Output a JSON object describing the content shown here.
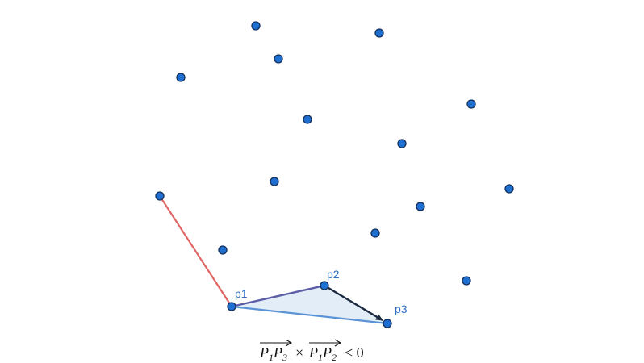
{
  "colors": {
    "point_fill": "#1f6fd1",
    "point_stroke": "#14305a",
    "hull_edge": "#e06666",
    "edge_p1_p2": "#5b5ea6",
    "edge_p2_p3": "#1b2a41",
    "edge_p1_p3": "#5b93d6",
    "triangle_fill": "#e3edf8",
    "label": "#2e6fc4"
  },
  "labels": {
    "p1": "p1",
    "p2": "p2",
    "p3": "p3"
  },
  "formula": {
    "v1_a": "P",
    "v1_a_sub": "1",
    "v1_b": "P",
    "v1_b_sub": "3",
    "times": "×",
    "v2_a": "P",
    "v2_a_sub": "1",
    "v2_b": "P",
    "v2_b_sub": "2",
    "relation": "< 0"
  }
}
